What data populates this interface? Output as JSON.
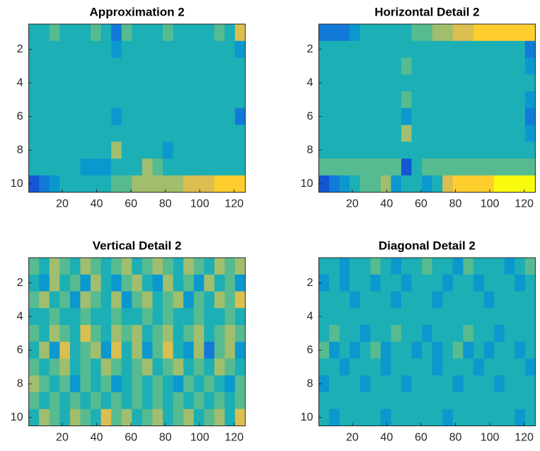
{
  "chart_data": [
    {
      "type": "heatmap",
      "title": "Approximation 2",
      "colormap": "parula",
      "clim": [
        0,
        9
      ],
      "xlim": [
        0.5,
        126.5
      ],
      "ylim": [
        0.5,
        10.5
      ],
      "y_reversed": true,
      "xticks": [
        20,
        40,
        60,
        80,
        100,
        120
      ],
      "yticks": [
        2,
        4,
        6,
        8,
        10
      ],
      "xbins": [
        0.5,
        6.5,
        12.5,
        18.5,
        24.5,
        30.5,
        36.5,
        42.5,
        48.5,
        54.5,
        60.5,
        66.5,
        72.5,
        78.5,
        84.5,
        90.5,
        96.5,
        102.5,
        108.5,
        114.5,
        120.5,
        126.5
      ],
      "y": [
        1,
        2,
        3,
        4,
        5,
        6,
        7,
        8,
        9,
        10
      ],
      "values": [
        [
          4,
          4,
          5,
          4,
          4,
          4,
          5,
          4,
          2,
          5,
          4,
          4,
          4,
          5,
          4,
          4,
          4,
          4,
          5,
          4,
          7
        ],
        [
          4,
          4,
          4,
          4,
          4,
          4,
          4,
          4,
          3,
          4,
          4,
          4,
          4,
          4,
          4,
          4,
          4,
          4,
          4,
          4,
          3
        ],
        [
          4,
          4,
          4,
          4,
          4,
          4,
          4,
          4,
          4,
          4,
          4,
          4,
          4,
          4,
          4,
          4,
          4,
          4,
          4,
          4,
          4
        ],
        [
          4,
          4,
          4,
          4,
          4,
          4,
          4,
          4,
          4,
          4,
          4,
          4,
          4,
          4,
          4,
          4,
          4,
          4,
          4,
          4,
          4
        ],
        [
          4,
          4,
          4,
          4,
          4,
          4,
          4,
          4,
          4,
          4,
          4,
          4,
          4,
          4,
          4,
          4,
          4,
          4,
          4,
          4,
          4
        ],
        [
          4,
          4,
          4,
          4,
          4,
          4,
          4,
          4,
          3,
          4,
          4,
          4,
          4,
          4,
          4,
          4,
          4,
          4,
          4,
          4,
          2
        ],
        [
          4,
          4,
          4,
          4,
          4,
          4,
          4,
          4,
          4,
          4,
          4,
          4,
          4,
          4,
          4,
          4,
          4,
          4,
          4,
          4,
          4
        ],
        [
          4,
          4,
          4,
          4,
          4,
          4,
          4,
          4,
          6,
          4,
          4,
          4,
          4,
          3,
          4,
          4,
          4,
          4,
          4,
          4,
          4
        ],
        [
          4,
          4,
          4,
          4,
          4,
          3,
          3,
          3,
          4,
          4,
          4,
          6,
          5,
          4,
          4,
          4,
          4,
          4,
          4,
          4,
          4
        ],
        [
          1,
          2,
          3,
          4,
          4,
          4,
          4,
          4,
          5,
          5,
          6,
          6,
          6,
          6,
          6,
          7,
          7,
          7,
          8,
          8,
          8
        ]
      ]
    },
    {
      "type": "heatmap",
      "title": "Horizontal Detail 2",
      "colormap": "parula",
      "clim": [
        0,
        9
      ],
      "xlim": [
        0.5,
        126.5
      ],
      "ylim": [
        0.5,
        10.5
      ],
      "y_reversed": true,
      "xticks": [
        20,
        40,
        60,
        80,
        100,
        120
      ],
      "yticks": [
        2,
        4,
        6,
        8,
        10
      ],
      "xbins": [
        0.5,
        6.5,
        12.5,
        18.5,
        24.5,
        30.5,
        36.5,
        42.5,
        48.5,
        54.5,
        60.5,
        66.5,
        72.5,
        78.5,
        84.5,
        90.5,
        96.5,
        102.5,
        108.5,
        114.5,
        120.5,
        126.5
      ],
      "y": [
        1,
        2,
        3,
        4,
        5,
        6,
        7,
        8,
        9,
        10
      ],
      "values": [
        [
          2,
          2,
          2,
          3,
          4,
          4,
          4,
          4,
          4,
          5,
          5,
          6,
          6,
          7,
          7,
          8,
          8,
          8,
          8,
          8,
          8
        ],
        [
          4,
          4,
          4,
          4,
          4,
          4,
          4,
          4,
          4,
          4,
          4,
          4,
          4,
          4,
          4,
          4,
          4,
          4,
          4,
          4,
          2
        ],
        [
          4,
          4,
          4,
          4,
          4,
          4,
          4,
          4,
          5,
          4,
          4,
          4,
          4,
          4,
          4,
          4,
          4,
          4,
          4,
          4,
          3
        ],
        [
          4,
          4,
          4,
          4,
          4,
          4,
          4,
          4,
          4,
          4,
          4,
          4,
          4,
          4,
          4,
          4,
          4,
          4,
          4,
          4,
          4
        ],
        [
          4,
          4,
          4,
          4,
          4,
          4,
          4,
          4,
          5,
          4,
          4,
          4,
          4,
          4,
          4,
          4,
          4,
          4,
          4,
          4,
          3
        ],
        [
          4,
          4,
          4,
          4,
          4,
          4,
          4,
          4,
          3,
          4,
          4,
          4,
          4,
          4,
          4,
          4,
          4,
          4,
          4,
          4,
          2
        ],
        [
          4,
          4,
          4,
          4,
          4,
          4,
          4,
          4,
          6,
          4,
          4,
          4,
          4,
          4,
          4,
          4,
          4,
          4,
          4,
          4,
          3
        ],
        [
          4,
          4,
          4,
          4,
          4,
          4,
          4,
          4,
          4,
          4,
          4,
          4,
          4,
          4,
          4,
          4,
          4,
          4,
          4,
          4,
          4
        ],
        [
          5,
          5,
          5,
          5,
          5,
          5,
          5,
          5,
          1,
          4,
          5,
          5,
          5,
          5,
          5,
          5,
          5,
          5,
          5,
          5,
          5
        ],
        [
          1,
          2,
          3,
          4,
          5,
          5,
          6,
          3,
          4,
          4,
          3,
          4,
          7,
          8,
          8,
          8,
          8,
          9,
          9,
          9,
          9
        ]
      ]
    },
    {
      "type": "heatmap",
      "title": "Vertical Detail 2",
      "colormap": "parula",
      "clim": [
        0,
        9
      ],
      "xlim": [
        0.5,
        126.5
      ],
      "ylim": [
        0.5,
        10.5
      ],
      "y_reversed": true,
      "xticks": [
        20,
        40,
        60,
        80,
        100,
        120
      ],
      "yticks": [
        2,
        4,
        6,
        8,
        10
      ],
      "xbins": [
        0.5,
        6.5,
        12.5,
        18.5,
        24.5,
        30.5,
        36.5,
        42.5,
        48.5,
        54.5,
        60.5,
        66.5,
        72.5,
        78.5,
        84.5,
        90.5,
        96.5,
        102.5,
        108.5,
        114.5,
        120.5,
        126.5
      ],
      "y": [
        1,
        2,
        3,
        4,
        5,
        6,
        7,
        8,
        9,
        10
      ],
      "values": [
        [
          5,
          4,
          6,
          5,
          4,
          6,
          5,
          4,
          5,
          6,
          4,
          5,
          6,
          5,
          4,
          6,
          5,
          4,
          6,
          5,
          6
        ],
        [
          4,
          3,
          6,
          4,
          5,
          3,
          6,
          4,
          3,
          5,
          6,
          4,
          3,
          6,
          4,
          5,
          3,
          6,
          4,
          5,
          3
        ],
        [
          5,
          6,
          4,
          5,
          3,
          6,
          5,
          4,
          6,
          3,
          5,
          6,
          4,
          5,
          6,
          3,
          5,
          4,
          6,
          5,
          7
        ],
        [
          4,
          4,
          5,
          4,
          4,
          5,
          4,
          4,
          5,
          4,
          4,
          5,
          4,
          5,
          4,
          4,
          5,
          4,
          4,
          5,
          4
        ],
        [
          5,
          4,
          6,
          5,
          4,
          7,
          5,
          4,
          6,
          5,
          6,
          4,
          5,
          6,
          4,
          5,
          6,
          4,
          5,
          6,
          5
        ],
        [
          4,
          6,
          3,
          7,
          4,
          5,
          6,
          3,
          7,
          4,
          6,
          3,
          5,
          7,
          4,
          3,
          6,
          2,
          5,
          6,
          3
        ],
        [
          5,
          4,
          5,
          6,
          4,
          5,
          4,
          6,
          5,
          4,
          5,
          6,
          4,
          5,
          6,
          4,
          5,
          4,
          6,
          5,
          4
        ],
        [
          6,
          5,
          4,
          5,
          3,
          5,
          4,
          5,
          3,
          4,
          5,
          4,
          5,
          4,
          3,
          5,
          4,
          5,
          4,
          3,
          5
        ],
        [
          5,
          4,
          5,
          4,
          5,
          4,
          5,
          4,
          5,
          4,
          5,
          4,
          5,
          4,
          5,
          4,
          5,
          4,
          5,
          4,
          5
        ],
        [
          4,
          6,
          5,
          4,
          6,
          5,
          4,
          7,
          5,
          6,
          4,
          5,
          6,
          4,
          5,
          6,
          4,
          5,
          6,
          4,
          7
        ]
      ]
    },
    {
      "type": "heatmap",
      "title": "Diagonal Detail 2",
      "colormap": "parula",
      "clim": [
        0,
        9
      ],
      "xlim": [
        0.5,
        126.5
      ],
      "ylim": [
        0.5,
        10.5
      ],
      "y_reversed": true,
      "xticks": [
        20,
        40,
        60,
        80,
        100,
        120
      ],
      "yticks": [
        2,
        4,
        6,
        8,
        10
      ],
      "xbins": [
        0.5,
        6.5,
        12.5,
        18.5,
        24.5,
        30.5,
        36.5,
        42.5,
        48.5,
        54.5,
        60.5,
        66.5,
        72.5,
        78.5,
        84.5,
        90.5,
        96.5,
        102.5,
        108.5,
        114.5,
        120.5,
        126.5
      ],
      "y": [
        1,
        2,
        3,
        4,
        5,
        6,
        7,
        8,
        9,
        10
      ],
      "values": [
        [
          4,
          4,
          3,
          4,
          4,
          5,
          4,
          3,
          4,
          4,
          5,
          4,
          4,
          3,
          5,
          4,
          4,
          4,
          3,
          4,
          5
        ],
        [
          3,
          4,
          3,
          4,
          4,
          3,
          4,
          4,
          3,
          4,
          4,
          4,
          3,
          4,
          4,
          3,
          4,
          4,
          4,
          3,
          4
        ],
        [
          4,
          4,
          4,
          3,
          4,
          4,
          4,
          3,
          4,
          4,
          4,
          3,
          4,
          4,
          4,
          4,
          3,
          4,
          4,
          4,
          4
        ],
        [
          4,
          4,
          4,
          4,
          4,
          4,
          4,
          4,
          4,
          4,
          4,
          4,
          4,
          4,
          4,
          4,
          4,
          4,
          4,
          4,
          4
        ],
        [
          4,
          5,
          4,
          4,
          3,
          4,
          4,
          5,
          4,
          4,
          3,
          4,
          4,
          4,
          5,
          4,
          4,
          3,
          4,
          4,
          4
        ],
        [
          5,
          3,
          4,
          3,
          4,
          5,
          3,
          4,
          4,
          3,
          4,
          3,
          4,
          5,
          3,
          4,
          3,
          4,
          4,
          3,
          4
        ],
        [
          4,
          4,
          3,
          4,
          4,
          4,
          3,
          4,
          4,
          4,
          4,
          3,
          4,
          4,
          4,
          3,
          4,
          4,
          4,
          4,
          3
        ],
        [
          3,
          4,
          4,
          4,
          3,
          4,
          4,
          4,
          3,
          4,
          4,
          4,
          4,
          3,
          4,
          4,
          4,
          3,
          4,
          4,
          4
        ],
        [
          4,
          4,
          4,
          4,
          4,
          4,
          4,
          4,
          4,
          4,
          4,
          4,
          4,
          4,
          4,
          4,
          4,
          4,
          4,
          4,
          4
        ],
        [
          4,
          3,
          4,
          4,
          4,
          4,
          3,
          4,
          4,
          4,
          4,
          4,
          3,
          4,
          4,
          4,
          4,
          4,
          4,
          3,
          4
        ]
      ]
    }
  ]
}
